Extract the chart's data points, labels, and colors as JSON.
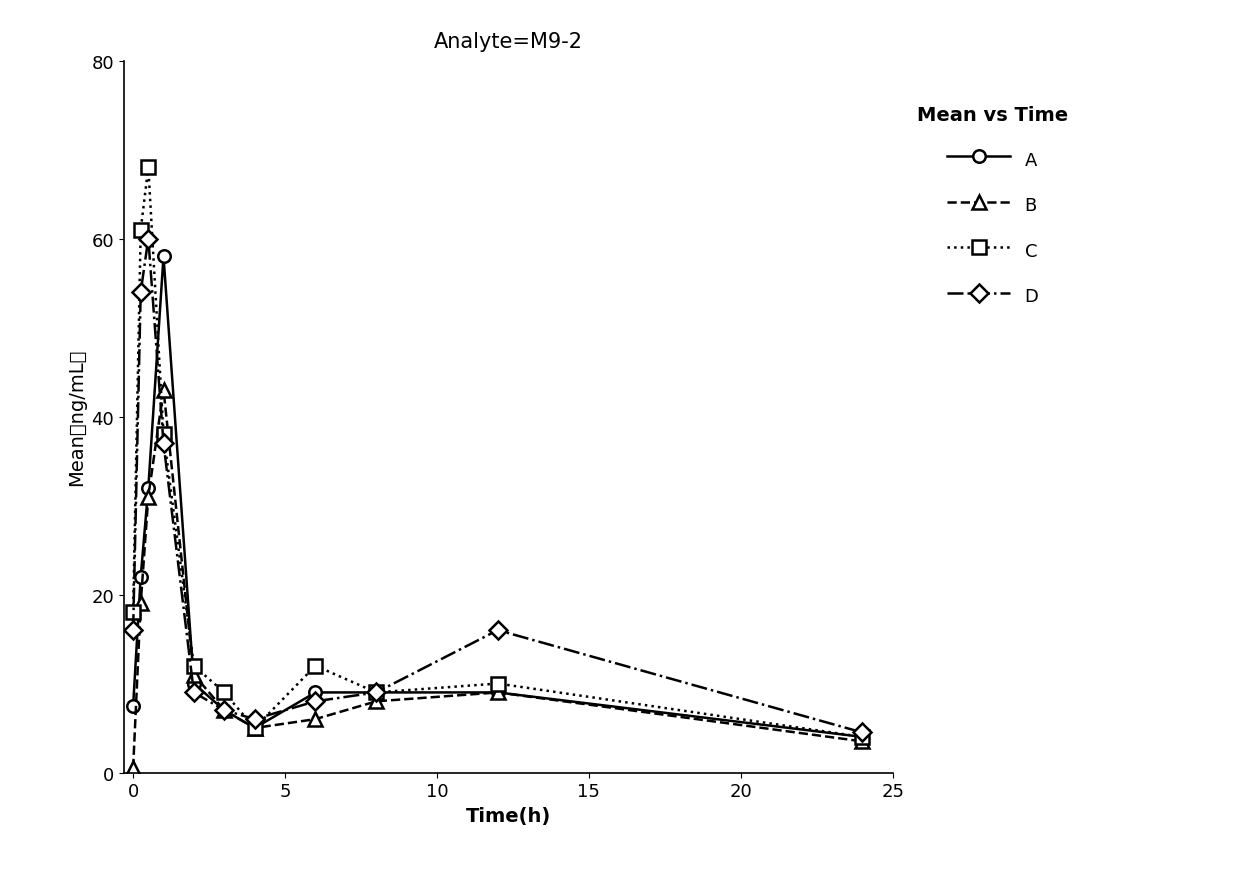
{
  "title": "Analyte=M9-2",
  "xlabel": "Time(h)",
  "ylabel": "Mean（ng/mL）",
  "xlim": [
    -0.3,
    25
  ],
  "ylim": [
    0,
    80
  ],
  "xticks": [
    0,
    5,
    10,
    15,
    20,
    25
  ],
  "yticks": [
    0,
    20,
    40,
    60,
    80
  ],
  "series": {
    "A": {
      "x": [
        0,
        0.25,
        0.5,
        1,
        2,
        3,
        4,
        6,
        8,
        12,
        24
      ],
      "y": [
        7.5,
        22,
        32,
        58,
        10,
        7,
        5,
        9,
        9,
        9,
        4
      ],
      "linestyle": "-",
      "marker": "o",
      "color": "#000000"
    },
    "B": {
      "x": [
        0,
        0.25,
        0.5,
        1,
        2,
        3,
        4,
        6,
        8,
        12,
        24
      ],
      "y": [
        0.5,
        19,
        31,
        43,
        11,
        7,
        5,
        6,
        8,
        9,
        3.5
      ],
      "linestyle": "--",
      "marker": "^",
      "color": "#000000"
    },
    "C": {
      "x": [
        0,
        0.25,
        0.5,
        1,
        2,
        3,
        4,
        6,
        8,
        12,
        24
      ],
      "y": [
        18,
        61,
        68,
        38,
        12,
        9,
        5,
        12,
        9,
        10,
        4
      ],
      "linestyle": ":",
      "marker": "s",
      "color": "#000000"
    },
    "D": {
      "x": [
        0,
        0.25,
        0.5,
        1,
        2,
        3,
        4,
        6,
        8,
        12,
        24
      ],
      "y": [
        16,
        54,
        60,
        37,
        9,
        7,
        6,
        8,
        9,
        16,
        4.5
      ],
      "linestyle": "-.",
      "marker": "D",
      "color": "#000000"
    }
  },
  "legend_title": "Mean vs Time",
  "background_color": "#ffffff",
  "title_fontsize": 15,
  "label_fontsize": 14,
  "tick_fontsize": 13,
  "legend_fontsize": 13
}
